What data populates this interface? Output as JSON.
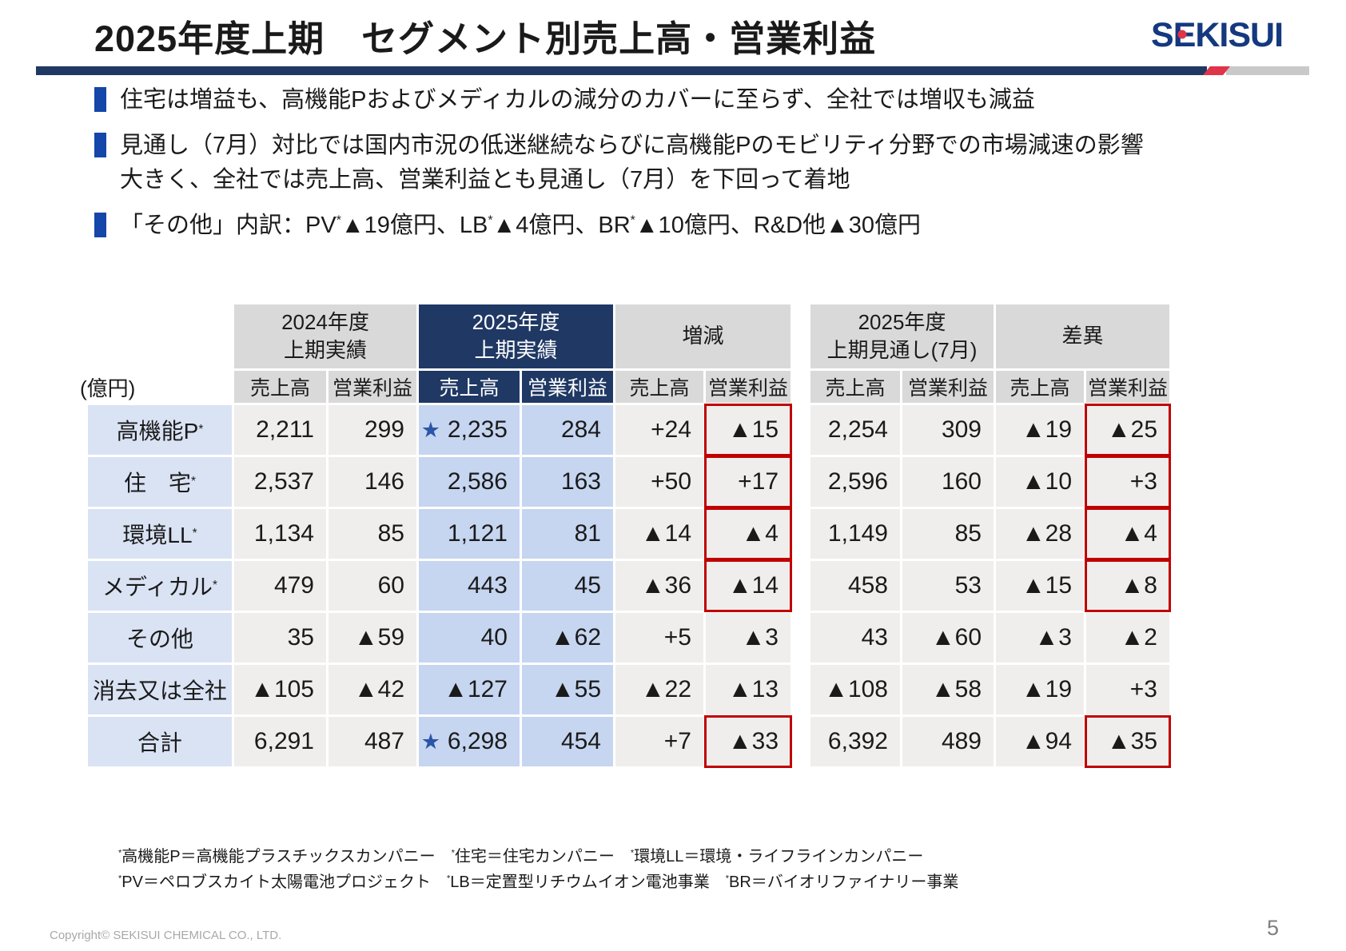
{
  "slide": {
    "title": "2025年度上期　セグメント別売上高・営業利益",
    "logo": "SEKISUI",
    "page_number": "5",
    "copyright": "Copyright© SEKISUI CHEMICAL CO., LTD."
  },
  "bullets": [
    "住宅は増益も、高機能Pおよびメディカルの減分のカバーに至らず、全社では増収も減益",
    "見通し（7月）対比では国内市況の低迷継続ならびに高機能Pのモビリティ分野での市場減速の影響大きく、全社では売上高、営業利益とも見通し（7月）を下回って着地",
    "「その他」内訳：PV*▲19億円、LB*▲4億円、BR*▲10億円、R&D他▲30億円"
  ],
  "table": {
    "unit_label": "(億円)",
    "col_groups": [
      {
        "title": [
          "2024年度",
          "上期実績"
        ],
        "navy": false
      },
      {
        "title": [
          "2025年度",
          "上期実績"
        ],
        "navy": true
      },
      {
        "title": [
          "増減"
        ],
        "navy": false
      },
      {
        "title": [
          "2025年度",
          "上期見通し(7月)"
        ],
        "navy": false
      },
      {
        "title": [
          "差異"
        ],
        "navy": false
      }
    ],
    "sub_headers": [
      {
        "t": "売上高",
        "navy": false
      },
      {
        "t": "営業利益",
        "navy": false
      },
      {
        "t": "売上高",
        "navy": true
      },
      {
        "t": "営業利益",
        "navy": true
      },
      {
        "t": "売上高",
        "navy": false
      },
      {
        "t": "営業利益",
        "navy": false
      },
      {
        "t": "売上高",
        "navy": false
      },
      {
        "t": "営業利益",
        "navy": false
      },
      {
        "t": "売上高",
        "navy": false
      },
      {
        "t": "営業利益",
        "navy": false
      }
    ],
    "rows": [
      {
        "label": "高機能P*",
        "values": [
          "2,211",
          "299",
          "2,235",
          "284",
          "+24",
          "▲15",
          "2,254",
          "309",
          "▲19",
          "▲25"
        ],
        "stars": [
          2
        ],
        "red": [
          5,
          9
        ]
      },
      {
        "label": "住　宅*",
        "values": [
          "2,537",
          "146",
          "2,586",
          "163",
          "+50",
          "+17",
          "2,596",
          "160",
          "▲10",
          "+3"
        ],
        "stars": [],
        "red": [
          5,
          9
        ]
      },
      {
        "label": "環境LL*",
        "values": [
          "1,134",
          "85",
          "1,121",
          "81",
          "▲14",
          "▲4",
          "1,149",
          "85",
          "▲28",
          "▲4"
        ],
        "stars": [],
        "red": [
          5,
          9
        ]
      },
      {
        "label": "メディカル*",
        "values": [
          "479",
          "60",
          "443",
          "45",
          "▲36",
          "▲14",
          "458",
          "53",
          "▲15",
          "▲8"
        ],
        "stars": [],
        "red": [
          5,
          9
        ]
      },
      {
        "label": "その他",
        "values": [
          "35",
          "▲59",
          "40",
          "▲62",
          "+5",
          "▲3",
          "43",
          "▲60",
          "▲3",
          "▲2"
        ],
        "stars": [],
        "red": []
      },
      {
        "label": "消去又は全社",
        "values": [
          "▲105",
          "▲42",
          "▲127",
          "▲55",
          "▲22",
          "▲13",
          "▲108",
          "▲58",
          "▲19",
          "+3"
        ],
        "stars": [],
        "red": []
      },
      {
        "label": "合計",
        "values": [
          "6,291",
          "487",
          "6,298",
          "454",
          "+7",
          "▲33",
          "6,392",
          "489",
          "▲94",
          "▲35"
        ],
        "stars": [
          2
        ],
        "red": [
          5,
          9
        ]
      }
    ]
  },
  "footnotes": [
    "*高機能P＝高機能プラスチックスカンパニー　*住宅＝住宅カンパニー　*環境LL＝環境・ライフラインカンパニー",
    "*PV＝ペロブスカイト太陽電池プロジェクト　*LB＝定置型リチウムイオン電池事業　*BR＝バイオリファイナリー事業"
  ],
  "colors": {
    "navy": "#1f3864",
    "hdr-gray": "#d9d9d9",
    "cell-gray": "#efeeec",
    "cell-blue": "#c6d5f0",
    "label-blue": "#dae3f4",
    "red": "#c00000",
    "bullet-blue": "#1546a9",
    "logo-blue": "#15397f",
    "star-blue": "#2b55a8",
    "rule-red": "#e0344a",
    "rule-gray": "#c9c9c9"
  }
}
